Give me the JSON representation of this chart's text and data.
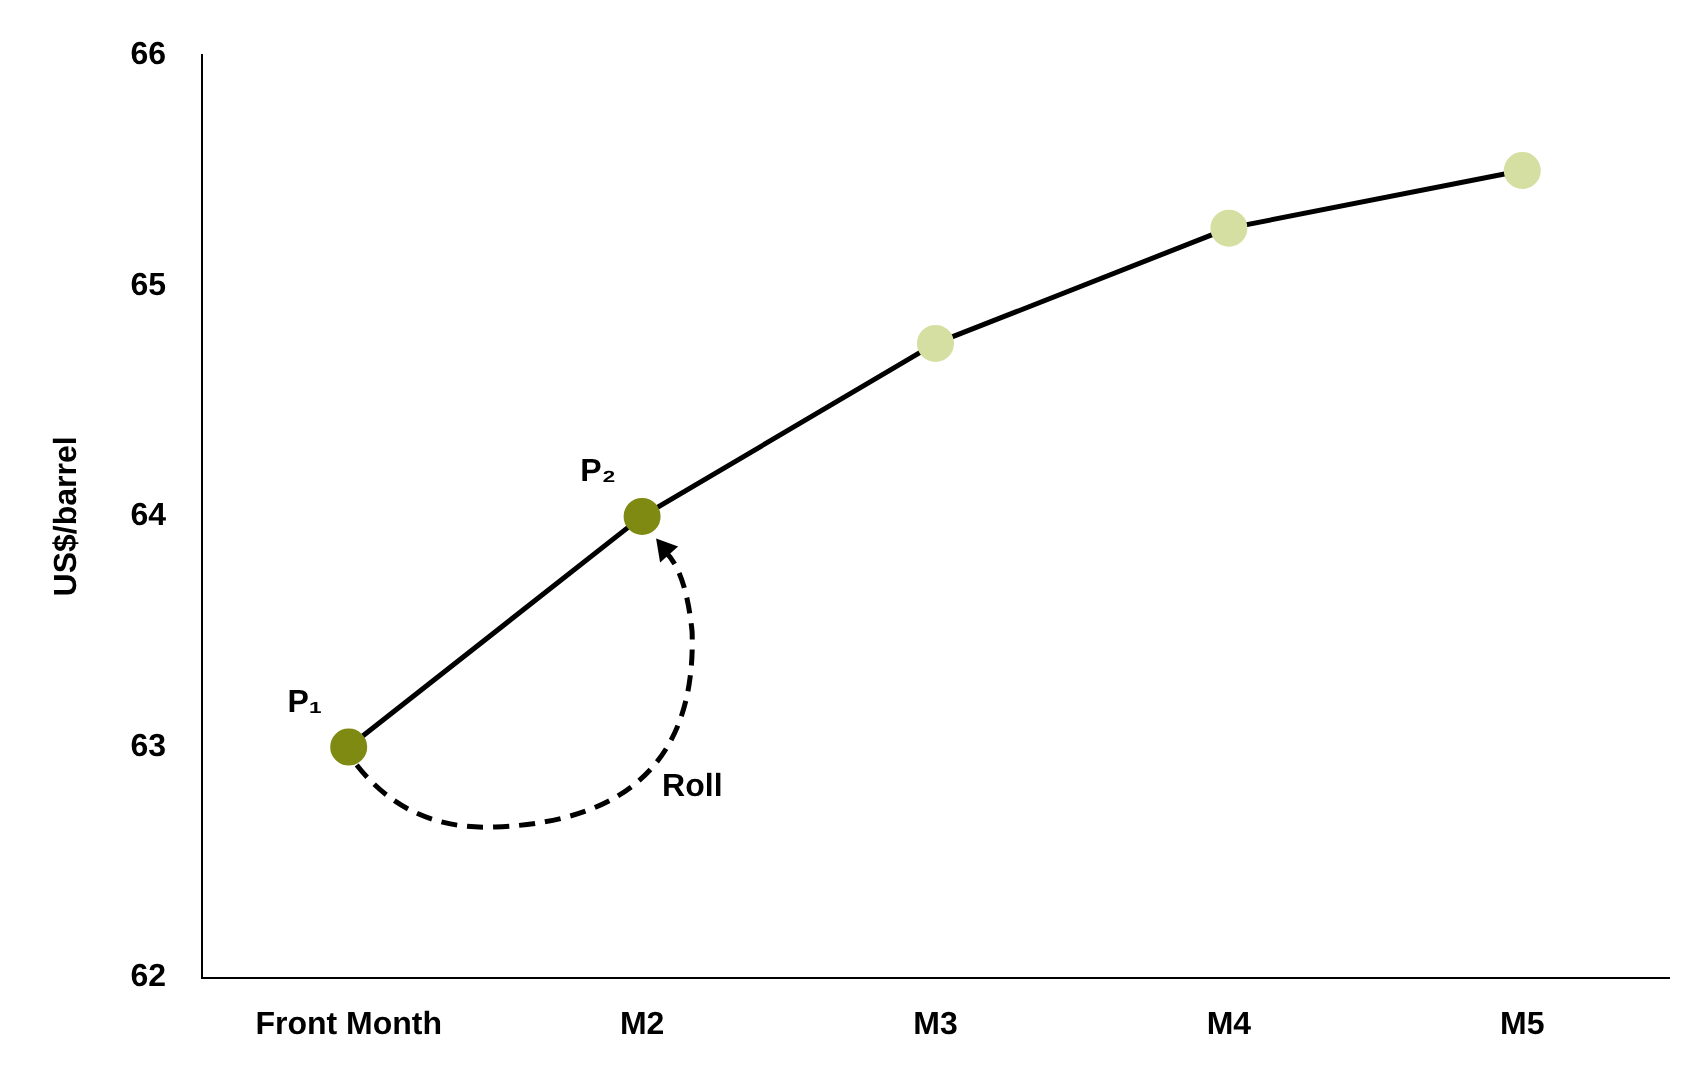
{
  "chart_data": {
    "type": "line",
    "ylabel": "US$/barrel",
    "categories": [
      "Front Month",
      "M2",
      "M3",
      "M4",
      "M5"
    ],
    "series": [
      {
        "color": "#000000",
        "colors": [
          "#7f8a12",
          "#7f8a12",
          "#d6dfa2",
          "#d6dfa2",
          "#d6dfa2"
        ],
        "values": [
          63,
          64,
          64.75,
          65.25,
          65.5
        ]
      }
    ],
    "ylim": [
      62,
      66
    ],
    "yticks": [
      62,
      63,
      64,
      65,
      66
    ],
    "grid": false,
    "legend": false,
    "marker": "circle",
    "line_style": "solid",
    "annotations": [
      {
        "text": "P₁",
        "x": "Front Month",
        "y": 63
      },
      {
        "text": "P₂",
        "x": "M2",
        "y": 64
      },
      "Roll"
    ]
  }
}
